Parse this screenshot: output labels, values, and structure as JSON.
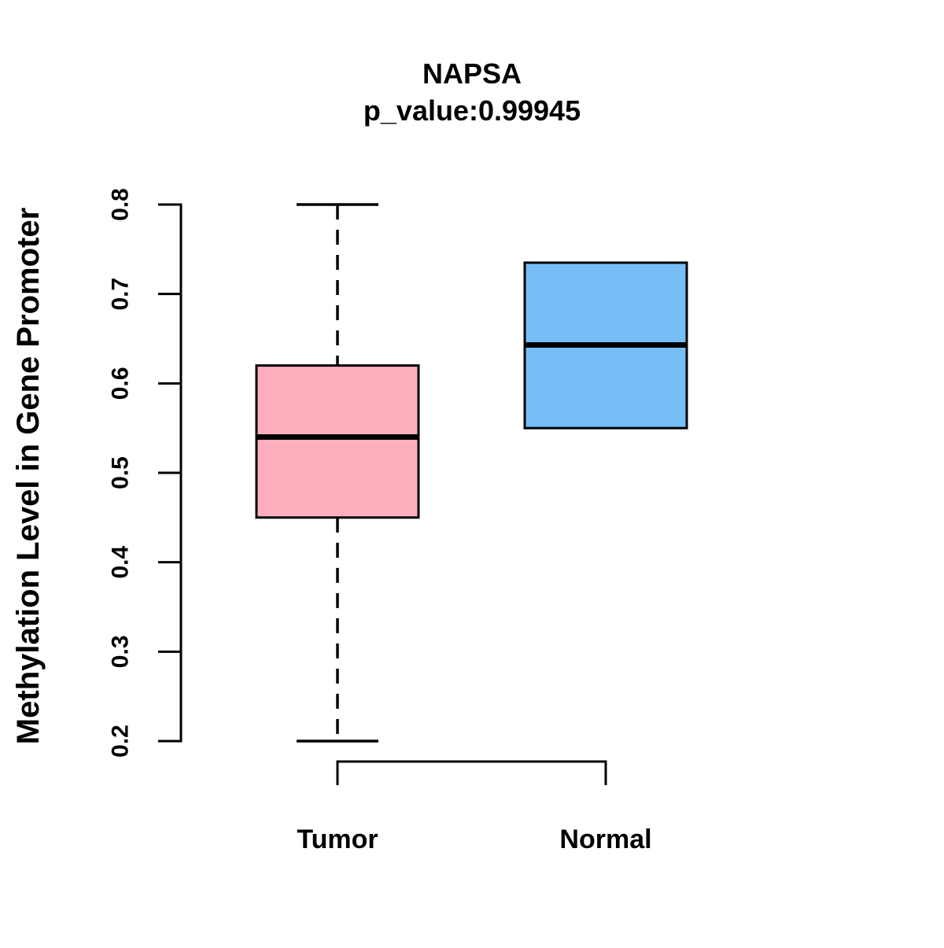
{
  "figure": {
    "title": "NAPSA",
    "subtitle": "p_value:0.99945",
    "y_axis_label": "Methylation Level in Gene Promoter",
    "background_color": "#ffffff",
    "axis_color": "#000000"
  },
  "chart_data": {
    "type": "boxplot",
    "title": "NAPSA",
    "subtitle": "p_value:0.99945",
    "xlabel": "",
    "ylabel": "Methylation Level in Gene Promoter",
    "ylim": [
      0.2,
      0.8
    ],
    "yticks": [
      0.2,
      0.3,
      0.4,
      0.5,
      0.6,
      0.7,
      0.8
    ],
    "grid": false,
    "legend": "none",
    "categories": [
      "Tumor",
      "Normal"
    ],
    "series": [
      {
        "name": "Tumor",
        "fill_color": "#FFAEBE",
        "border_color": "#000000",
        "whisker_low": 0.2,
        "q1": 0.45,
        "median": 0.54,
        "q3": 0.62,
        "whisker_high": 0.8,
        "whisker_style": "dashed"
      },
      {
        "name": "Normal",
        "fill_color": "#76BEF6",
        "border_color": "#000000",
        "whisker_low": 0.55,
        "q1": 0.55,
        "median": 0.643,
        "q3": 0.735,
        "whisker_high": 0.735,
        "whisker_style": "dashed"
      }
    ]
  }
}
